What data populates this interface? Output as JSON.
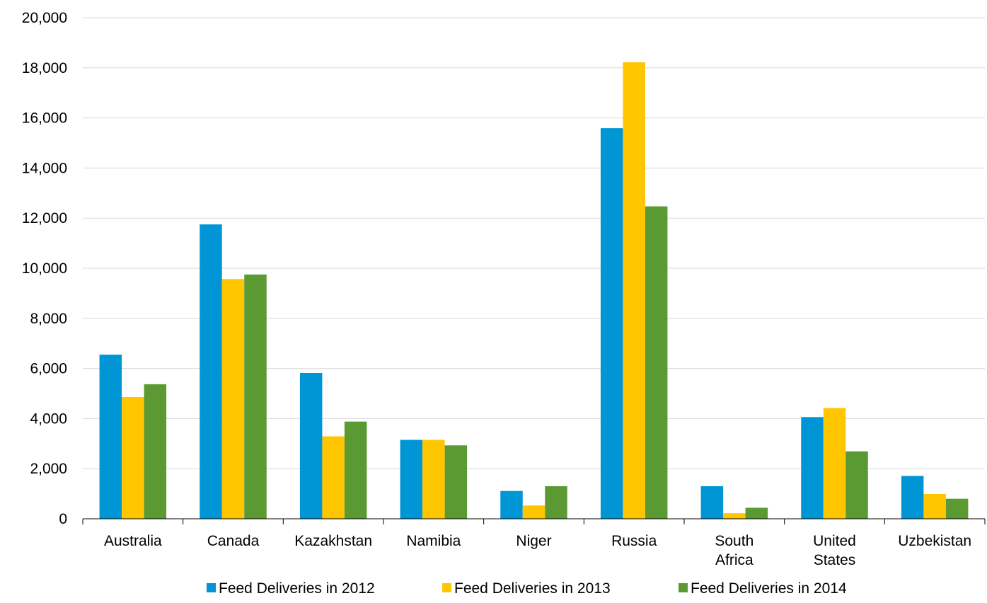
{
  "chart_data": {
    "type": "bar",
    "title": "",
    "xlabel": "",
    "ylabel": "",
    "ylim": [
      0,
      20000
    ],
    "yticks": [
      0,
      2000,
      4000,
      6000,
      8000,
      10000,
      12000,
      14000,
      16000,
      18000,
      20000
    ],
    "ytick_labels": [
      "0",
      "2,000",
      "4,000",
      "6,000",
      "8,000",
      "10,000",
      "12,000",
      "14,000",
      "16,000",
      "18,000",
      "20,000"
    ],
    "grid": true,
    "legend_position": "bottom",
    "categories": [
      [
        "Australia"
      ],
      [
        "Canada"
      ],
      [
        "Kazakhstan"
      ],
      [
        "Namibia"
      ],
      [
        "Niger"
      ],
      [
        "Russia"
      ],
      [
        "South",
        "Africa"
      ],
      [
        "United",
        "States"
      ],
      [
        "Uzbekistan"
      ]
    ],
    "series": [
      {
        "name": "Feed Deliveries in 2012",
        "color": "#0096D6",
        "values": [
          6550,
          11750,
          5820,
          3150,
          1110,
          15590,
          1300,
          4060,
          1710
        ]
      },
      {
        "name": "Feed Deliveries in 2013",
        "color": "#FFC600",
        "values": [
          4860,
          9570,
          3290,
          3150,
          530,
          18220,
          220,
          4420,
          990
        ]
      },
      {
        "name": "Feed Deliveries in 2014",
        "color": "#5B9A32",
        "values": [
          5370,
          9750,
          3880,
          2930,
          1300,
          12470,
          440,
          2690,
          800
        ]
      }
    ]
  }
}
